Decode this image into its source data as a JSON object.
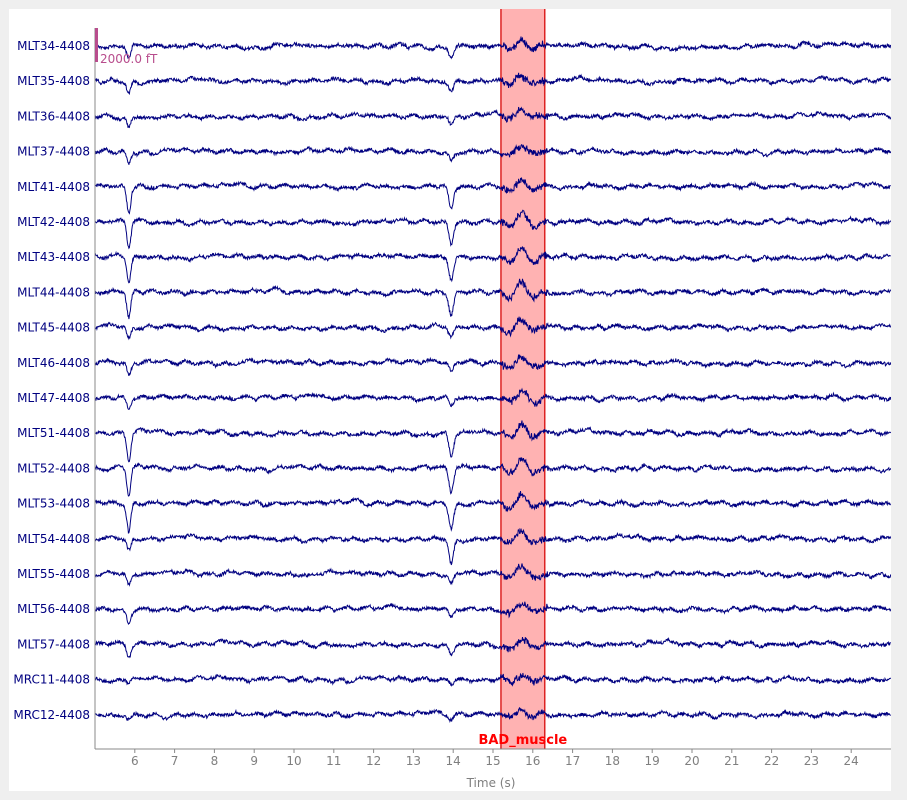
{
  "chart_data": {
    "type": "line",
    "xlabel": "Time (s)",
    "xlim": [
      5,
      25
    ],
    "x_ticks": [
      6,
      7,
      8,
      9,
      10,
      11,
      12,
      13,
      14,
      15,
      16,
      17,
      18,
      19,
      20,
      21,
      22,
      23,
      24
    ],
    "grid": false,
    "channels": [
      "MLT34-4408",
      "MLT35-4408",
      "MLT36-4408",
      "MLT37-4408",
      "MLT41-4408",
      "MLT42-4408",
      "MLT43-4408",
      "MLT44-4408",
      "MLT45-4408",
      "MLT46-4408",
      "MLT47-4408",
      "MLT51-4408",
      "MLT52-4408",
      "MLT53-4408",
      "MLT54-4408",
      "MLT55-4408",
      "MLT56-4408",
      "MLT57-4408",
      "MRC11-4408",
      "MRC12-4408"
    ],
    "annotations": [
      {
        "label": "BAD_muscle",
        "start": 15.2,
        "end": 16.3,
        "color": "#ff0000"
      }
    ],
    "scale_bar": {
      "label": "2000.0 fT"
    },
    "trace_color": "#000080"
  }
}
